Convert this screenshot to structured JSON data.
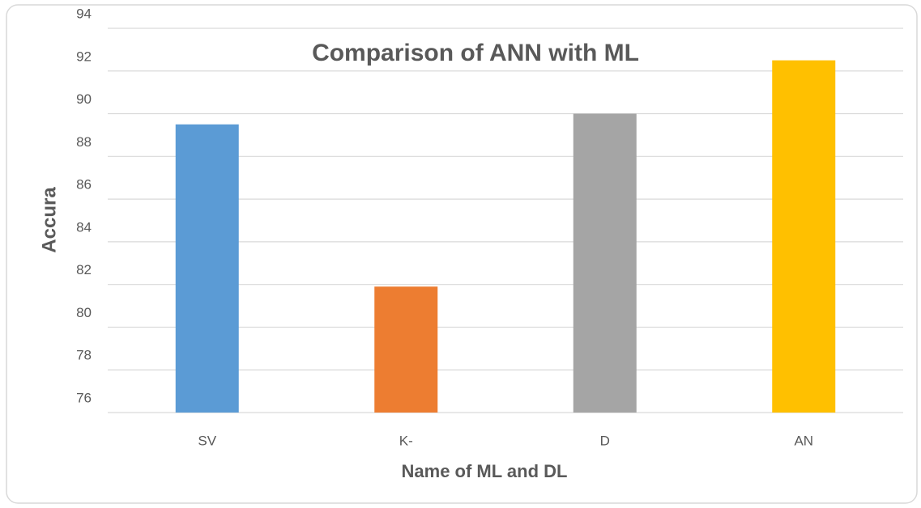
{
  "chart_data": {
    "type": "bar",
    "title": "Comparison of ANN with ML",
    "x_label": "Name of ML and DL",
    "y_label": "Accura",
    "categories": [
      "SV",
      "K-",
      "D",
      "AN"
    ],
    "values": [
      89.5,
      81.9,
      90.0,
      92.5
    ],
    "colors": [
      "#5b9bd5",
      "#ed7d31",
      "#a5a5a5",
      "#ffc000"
    ],
    "ylim": [
      76,
      94
    ],
    "yticks": [
      76,
      78,
      80,
      82,
      84,
      86,
      88,
      90,
      92,
      94
    ],
    "grid": true
  }
}
